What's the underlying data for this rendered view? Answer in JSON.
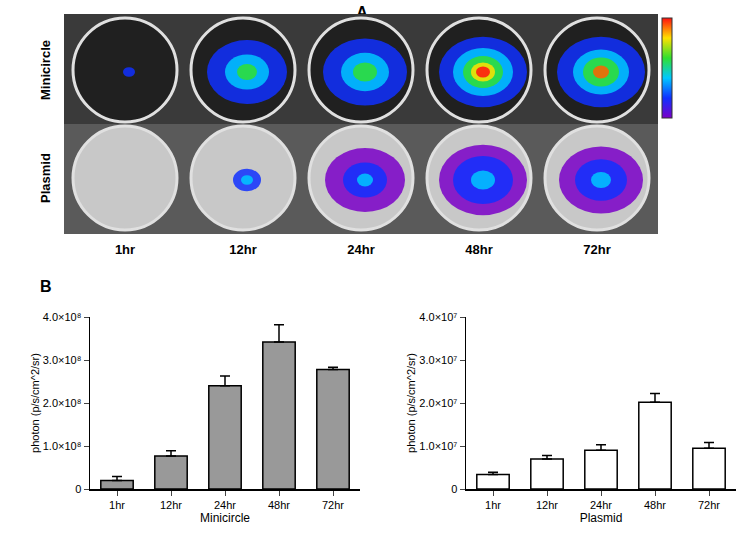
{
  "panel_a": {
    "label": "A",
    "rows": [
      "Minicircle",
      "Plasmid"
    ],
    "columns": [
      "1hr",
      "12hr",
      "24hr",
      "48hr",
      "72hr"
    ]
  },
  "panel_b_label": "B",
  "chart_data": [
    {
      "type": "bar",
      "x_label": "Minicircle",
      "y_label": "photon (p/s/cm^2/sr)",
      "categories": [
        "1hr",
        "12hr",
        "24hr",
        "48hr",
        "72hr"
      ],
      "values": [
        20000000,
        77000000,
        240000000,
        342000000,
        278000000
      ],
      "errors": [
        9000000,
        12000000,
        23000000,
        40000000,
        5000000
      ],
      "color": "#999999",
      "ylim": [
        0,
        400000000
      ],
      "yticks": [
        0,
        {
          "value": 100000000,
          "label": "1.0×10⁸"
        },
        {
          "value": 200000000,
          "label": "2.0×10⁸"
        },
        {
          "value": 300000000,
          "label": "3.0×10⁸"
        },
        {
          "value": 400000000,
          "label": "4.0×10⁸"
        }
      ],
      "grid": false
    },
    {
      "type": "bar",
      "x_label": "Plasmid",
      "y_label": "photon (p/s/cm^2/sr)",
      "categories": [
        "1hr",
        "12hr",
        "24hr",
        "48hr",
        "72hr"
      ],
      "values": [
        3400000,
        7000000,
        9000000,
        20200000,
        9500000
      ],
      "errors": [
        500000,
        800000,
        1300000,
        2000000,
        1300000
      ],
      "color": "#ffffff",
      "ylim": [
        0,
        40000000
      ],
      "yticks": [
        0,
        {
          "value": 10000000,
          "label": "1.0×10⁷"
        },
        {
          "value": 20000000,
          "label": "2.0×10⁷"
        },
        {
          "value": 30000000,
          "label": "3.0×10⁷"
        },
        {
          "value": 40000000,
          "label": "4.0×10⁷"
        }
      ],
      "grid": false
    }
  ]
}
